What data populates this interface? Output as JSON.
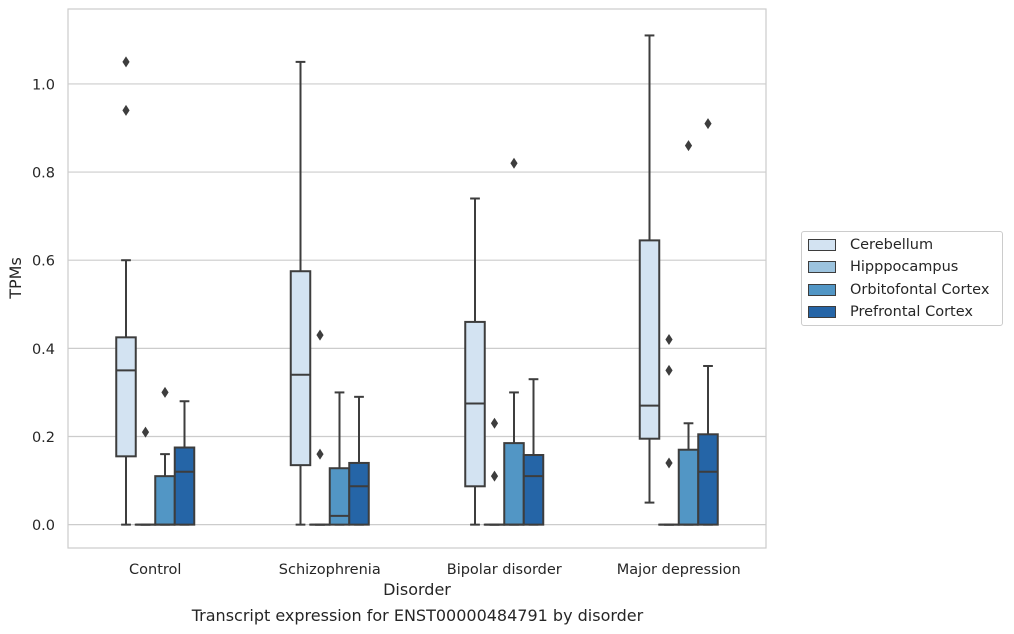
{
  "chart_data": {
    "type": "box",
    "caption": "Transcript expression for ENST00000484791 by disorder",
    "xlabel": "Disorder",
    "ylabel": "TPMs",
    "ylim": [
      -0.053,
      1.17
    ],
    "yticks": [
      "0.0",
      "0.2",
      "0.4",
      "0.6",
      "0.8",
      "1.0"
    ],
    "grid": "horizontal",
    "legend_position": "right",
    "categories": [
      "Control",
      "Schizophrenia",
      "Bipolar disorder",
      "Major depression"
    ],
    "series": [
      {
        "name": "Cerebellum",
        "color": "#d3e3f2",
        "boxes": [
          {
            "whisker_low": 0.0,
            "q1": 0.155,
            "median": 0.35,
            "q3": 0.425,
            "whisker_high": 0.6,
            "outliers": [
              0.94,
              1.05
            ]
          },
          {
            "whisker_low": 0.0,
            "q1": 0.135,
            "median": 0.34,
            "q3": 0.575,
            "whisker_high": 1.05,
            "outliers": []
          },
          {
            "whisker_low": 0.0,
            "q1": 0.087,
            "median": 0.275,
            "q3": 0.46,
            "whisker_high": 0.74,
            "outliers": []
          },
          {
            "whisker_low": 0.05,
            "q1": 0.195,
            "median": 0.27,
            "q3": 0.645,
            "whisker_high": 1.11,
            "outliers": []
          }
        ]
      },
      {
        "name": "Hipppocampus",
        "color": "#9cc3de",
        "boxes": [
          {
            "whisker_low": 0.0,
            "q1": 0.0,
            "median": 0.0,
            "q3": 0.0,
            "whisker_high": 0.0,
            "outliers": [
              0.21
            ]
          },
          {
            "whisker_low": 0.0,
            "q1": 0.0,
            "median": 0.0,
            "q3": 0.0,
            "whisker_high": 0.0,
            "outliers": [
              0.16,
              0.43
            ]
          },
          {
            "whisker_low": 0.0,
            "q1": 0.0,
            "median": 0.0,
            "q3": 0.0,
            "whisker_high": 0.0,
            "outliers": [
              0.11,
              0.23
            ]
          },
          {
            "whisker_low": 0.0,
            "q1": 0.0,
            "median": 0.0,
            "q3": 0.0,
            "whisker_high": 0.0,
            "outliers": [
              0.14,
              0.35,
              0.42
            ]
          }
        ]
      },
      {
        "name": "Orbitofontal Cortex",
        "color": "#5296c5",
        "boxes": [
          {
            "whisker_low": 0.0,
            "q1": 0.0,
            "median": 0.0,
            "q3": 0.11,
            "whisker_high": 0.16,
            "outliers": [
              0.3
            ]
          },
          {
            "whisker_low": 0.0,
            "q1": 0.0,
            "median": 0.02,
            "q3": 0.128,
            "whisker_high": 0.3,
            "outliers": []
          },
          {
            "whisker_low": 0.0,
            "q1": 0.0,
            "median": 0.0,
            "q3": 0.185,
            "whisker_high": 0.3,
            "outliers": [
              0.82
            ]
          },
          {
            "whisker_low": 0.0,
            "q1": 0.0,
            "median": 0.0,
            "q3": 0.17,
            "whisker_high": 0.23,
            "outliers": [
              0.86
            ]
          }
        ]
      },
      {
        "name": "Prefrontal Cortex",
        "color": "#2565a7",
        "boxes": [
          {
            "whisker_low": 0.0,
            "q1": 0.0,
            "median": 0.12,
            "q3": 0.175,
            "whisker_high": 0.28,
            "outliers": []
          },
          {
            "whisker_low": 0.0,
            "q1": 0.0,
            "median": 0.087,
            "q3": 0.14,
            "whisker_high": 0.29,
            "outliers": []
          },
          {
            "whisker_low": 0.0,
            "q1": 0.0,
            "median": 0.11,
            "q3": 0.158,
            "whisker_high": 0.33,
            "outliers": []
          },
          {
            "whisker_low": 0.0,
            "q1": 0.0,
            "median": 0.12,
            "q3": 0.205,
            "whisker_high": 0.36,
            "outliers": [
              0.91
            ]
          }
        ]
      }
    ]
  }
}
